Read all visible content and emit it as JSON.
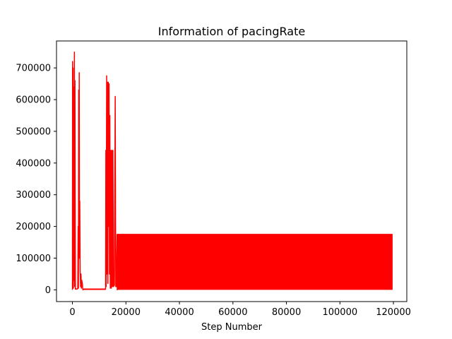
{
  "chart_data": {
    "type": "line",
    "title": "Information of pacingRate",
    "xlabel": "Step Number",
    "ylabel": "",
    "xlim": [
      -5950,
      125000
    ],
    "ylim": [
      -37000,
      785000
    ],
    "grid": false,
    "series_color": "#ff0000",
    "x_ticks": [
      {
        "value": 0,
        "label": "0"
      },
      {
        "value": 20000,
        "label": "20000"
      },
      {
        "value": 40000,
        "label": "40000"
      },
      {
        "value": 60000,
        "label": "60000"
      },
      {
        "value": 80000,
        "label": "80000"
      },
      {
        "value": 100000,
        "label": "100000"
      },
      {
        "value": 120000,
        "label": "120000"
      }
    ],
    "y_ticks": [
      {
        "value": 0,
        "label": "0"
      },
      {
        "value": 100000,
        "label": "100000"
      },
      {
        "value": 200000,
        "label": "200000"
      },
      {
        "value": 300000,
        "label": "300000"
      },
      {
        "value": 400000,
        "label": "400000"
      },
      {
        "value": 500000,
        "label": "500000"
      },
      {
        "value": 600000,
        "label": "600000"
      },
      {
        "value": 700000,
        "label": "700000"
      }
    ],
    "series": [
      {
        "values": [
          [
            0,
            0
          ],
          [
            50,
            720000
          ],
          [
            150,
            20000
          ],
          [
            250,
            700000
          ],
          [
            350,
            5000
          ],
          [
            450,
            640000
          ],
          [
            550,
            250000
          ],
          [
            650,
            30000
          ],
          [
            750,
            750000
          ],
          [
            850,
            10000
          ],
          [
            950,
            660000
          ],
          [
            1100,
            2000
          ],
          [
            1400,
            3000
          ],
          [
            1700,
            2000
          ],
          [
            2000,
            5000
          ],
          [
            2150,
            200000
          ],
          [
            2250,
            5000
          ],
          [
            2350,
            630000
          ],
          [
            2450,
            150000
          ],
          [
            2550,
            685000
          ],
          [
            2650,
            100000
          ],
          [
            2750,
            280000
          ],
          [
            2900,
            60000
          ],
          [
            3050,
            10000
          ],
          [
            3200,
            50000
          ],
          [
            3350,
            5000
          ],
          [
            3500,
            30000
          ],
          [
            3700,
            20000
          ],
          [
            3900,
            0
          ],
          [
            4200,
            2000
          ],
          [
            6000,
            2000
          ],
          [
            8000,
            2000
          ],
          [
            10000,
            2000
          ],
          [
            12000,
            2000
          ],
          [
            12400,
            2000
          ],
          [
            12500,
            440000
          ],
          [
            12600,
            10000
          ],
          [
            12800,
            675000
          ],
          [
            12950,
            50000
          ],
          [
            13100,
            655000
          ],
          [
            13250,
            20000
          ],
          [
            13400,
            655000
          ],
          [
            13550,
            200000
          ],
          [
            13700,
            650000
          ],
          [
            13850,
            50000
          ],
          [
            14000,
            550000
          ],
          [
            14150,
            5000
          ],
          [
            14350,
            440000
          ],
          [
            14550,
            5000
          ],
          [
            14750,
            440000
          ],
          [
            14950,
            10000
          ],
          [
            15150,
            440000
          ],
          [
            15350,
            10000
          ],
          [
            15700,
            15000
          ],
          [
            16000,
            610000
          ],
          [
            16200,
            10000
          ],
          [
            16400,
            10000
          ],
          [
            16700,
            175000
          ],
          [
            16750,
            0
          ],
          [
            16800,
            175000
          ],
          [
            119500,
            175000
          ],
          [
            119500,
            0
          ]
        ]
      }
    ]
  }
}
